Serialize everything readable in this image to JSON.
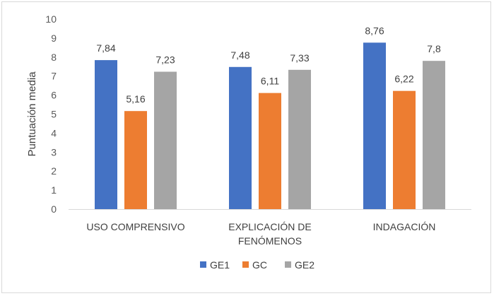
{
  "chart_data": {
    "type": "bar",
    "ylabel": "Puntuación media",
    "xlabel": "",
    "ylim": [
      0,
      10
    ],
    "yticks": [
      0,
      1,
      2,
      3,
      4,
      5,
      6,
      7,
      8,
      9,
      10
    ],
    "categories": [
      [
        "USO COMPRENSIVO"
      ],
      [
        "EXPLICACIÓN DE",
        "FENÓMENOS"
      ],
      [
        "INDAGACIÓN"
      ]
    ],
    "series": [
      {
        "name": "GE1",
        "color": "#4472c4",
        "values": [
          7.84,
          7.48,
          8.76
        ],
        "labels": [
          "7,84",
          "7,48",
          "8,76"
        ]
      },
      {
        "name": "GC",
        "color": "#ed7d31",
        "values": [
          5.16,
          6.11,
          6.22
        ],
        "labels": [
          "5,16",
          "6,11",
          "6,22"
        ]
      },
      {
        "name": "GE2",
        "color": "#a5a5a5",
        "values": [
          7.23,
          7.33,
          7.8
        ],
        "labels": [
          "7,23",
          "7,33",
          "7,8"
        ]
      }
    ],
    "grid": false,
    "legend": "bottom"
  }
}
